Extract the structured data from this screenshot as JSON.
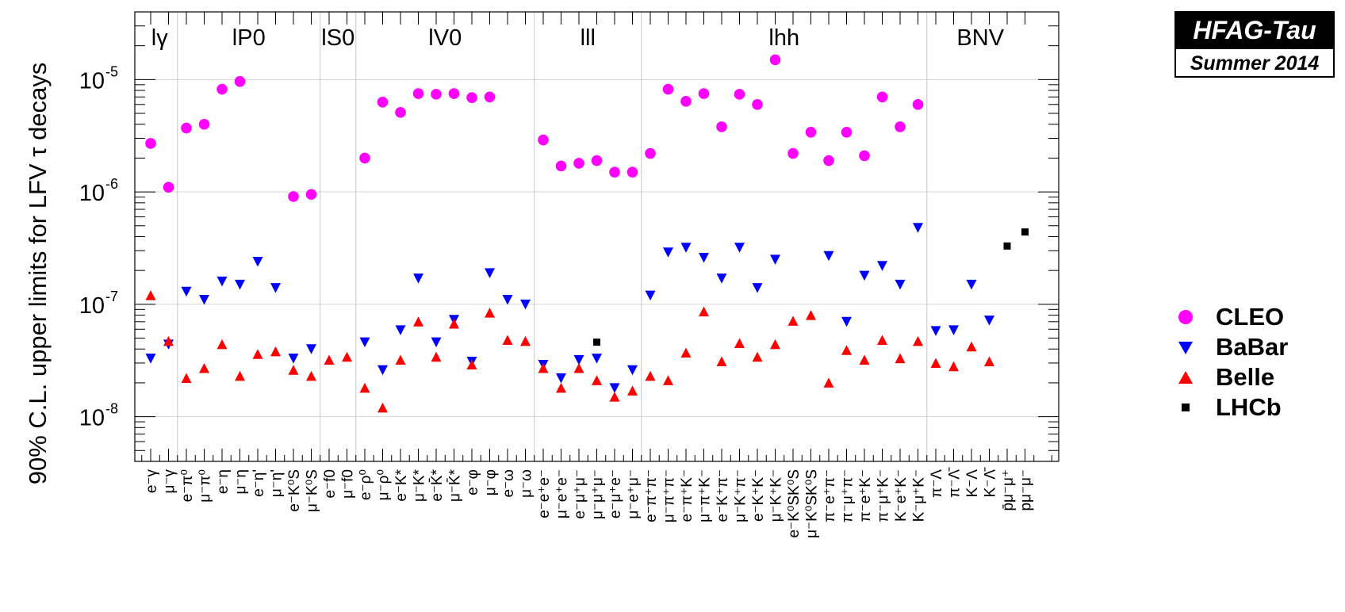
{
  "chart_data": {
    "type": "scatter",
    "ylabel": "90% C.L. upper limits for LFV τ decays",
    "yscale": "log",
    "ylim": [
      4e-09,
      4e-05
    ],
    "ytick_labels": [
      {
        "base": "10",
        "exp": "-8",
        "value": 1e-08
      },
      {
        "base": "10",
        "exp": "-7",
        "value": 1e-07
      },
      {
        "base": "10",
        "exp": "-6",
        "value": 1e-06
      },
      {
        "base": "10",
        "exp": "-5",
        "value": 1e-05
      }
    ],
    "grid": true,
    "legend_position": "right",
    "groups": [
      {
        "label": "lγ",
        "start": 0,
        "end": 2
      },
      {
        "label": "lP0",
        "start": 2,
        "end": 10
      },
      {
        "label": "lS0",
        "start": 10,
        "end": 12
      },
      {
        "label": "lV0",
        "start": 12,
        "end": 22
      },
      {
        "label": "lll",
        "start": 22,
        "end": 28
      },
      {
        "label": "lhh",
        "start": 28,
        "end": 44
      },
      {
        "label": "BNV",
        "start": 44,
        "end": 50
      }
    ],
    "categories": [
      "e⁻γ",
      "μ⁻γ",
      "e⁻π⁰",
      "μ⁻π⁰",
      "e⁻η",
      "μ⁻η",
      "e⁻η'",
      "μ⁻η'",
      "e⁻K⁰S",
      "μ⁻K⁰S",
      "e⁻f0",
      "μ⁻f0",
      "e⁻ρ⁰",
      "μ⁻ρ⁰",
      "e⁻K*",
      "μ⁻K*",
      "e⁻K̄*",
      "μ⁻K̄*",
      "e⁻φ",
      "μ⁻φ",
      "e⁻ω",
      "μ⁻ω",
      "e⁻e⁺e⁻",
      "μ⁻e⁺e⁻",
      "e⁻μ⁺μ⁻",
      "μ⁻μ⁺μ⁻",
      "e⁻μ⁺e⁻",
      "μ⁻e⁺μ⁻",
      "e⁻π⁺π⁻",
      "μ⁻π⁺π⁻",
      "e⁻π⁺K⁻",
      "μ⁻π⁺K⁻",
      "e⁻K⁺π⁻",
      "μ⁻K⁺π⁻",
      "e⁻K⁺K⁻",
      "μ⁻K⁺K⁻",
      "e⁻K⁰SK⁰S",
      "μ⁻K⁰SK⁰S",
      "π⁻e⁺π⁻",
      "π⁻μ⁺π⁻",
      "π⁻e⁺K⁻",
      "π⁻μ⁺K⁻",
      "K⁻e⁺K⁻",
      "K⁻μ⁺K⁻",
      "π⁻Λ",
      "π⁻Λ̄",
      "K⁻Λ",
      "K⁻Λ̄",
      "p̄μ⁻μ⁺",
      "pμ⁻μ⁻"
    ],
    "series": [
      {
        "name": "CLEO",
        "color": "#ff00ff",
        "marker": "circle",
        "values": [
          2.7e-06,
          1.1e-06,
          3.7e-06,
          4e-06,
          8.2e-06,
          9.6e-06,
          null,
          null,
          9.1e-07,
          9.5e-07,
          null,
          null,
          2e-06,
          6.3e-06,
          5.1e-06,
          7.5e-06,
          7.4e-06,
          7.5e-06,
          6.9e-06,
          7e-06,
          null,
          null,
          2.9e-06,
          1.7e-06,
          1.8e-06,
          1.9e-06,
          1.5e-06,
          1.5e-06,
          2.2e-06,
          8.2e-06,
          6.4e-06,
          7.5e-06,
          3.8e-06,
          7.4e-06,
          6e-06,
          1.5e-05,
          2.2e-06,
          3.4e-06,
          1.9e-06,
          3.4e-06,
          2.1e-06,
          7e-06,
          3.8e-06,
          6e-06,
          null,
          null,
          null,
          null,
          null,
          null
        ]
      },
      {
        "name": "BaBar",
        "color": "#0000ff",
        "marker": "triangle-down",
        "values": [
          3.3e-08,
          4.4e-08,
          1.3e-07,
          1.1e-07,
          1.6e-07,
          1.5e-07,
          2.4e-07,
          1.4e-07,
          3.3e-08,
          4e-08,
          null,
          null,
          4.6e-08,
          2.6e-08,
          5.9e-08,
          1.7e-07,
          4.6e-08,
          7.3e-08,
          3.1e-08,
          1.9e-07,
          1.1e-07,
          1e-07,
          2.9e-08,
          2.2e-08,
          3.2e-08,
          3.3e-08,
          1.8e-08,
          2.6e-08,
          1.2e-07,
          2.9e-07,
          3.2e-07,
          2.6e-07,
          1.7e-07,
          3.2e-07,
          1.4e-07,
          2.5e-07,
          null,
          null,
          2.7e-07,
          7e-08,
          1.8e-07,
          2.2e-07,
          1.5e-07,
          4.8e-07,
          5.8e-08,
          5.9e-08,
          1.5e-07,
          7.2e-08,
          null,
          null
        ]
      },
      {
        "name": "Belle",
        "color": "#ff0000",
        "marker": "triangle-up",
        "values": [
          1.2e-07,
          4.7e-08,
          2.2e-08,
          2.7e-08,
          4.4e-08,
          2.3e-08,
          3.6e-08,
          3.8e-08,
          2.6e-08,
          2.3e-08,
          3.2e-08,
          3.4e-08,
          1.8e-08,
          1.2e-08,
          3.2e-08,
          7e-08,
          3.4e-08,
          6.7e-08,
          2.9e-08,
          8.4e-08,
          4.8e-08,
          4.7e-08,
          2.7e-08,
          1.8e-08,
          2.7e-08,
          2.1e-08,
          1.5e-08,
          1.7e-08,
          2.3e-08,
          2.1e-08,
          3.7e-08,
          8.6e-08,
          3.1e-08,
          4.5e-08,
          3.4e-08,
          4.4e-08,
          7.1e-08,
          8e-08,
          2e-08,
          3.9e-08,
          3.2e-08,
          4.8e-08,
          3.3e-08,
          4.7e-08,
          3e-08,
          2.8e-08,
          4.2e-08,
          3.1e-08,
          null,
          null
        ]
      },
      {
        "name": "LHCb",
        "color": "#000000",
        "marker": "square",
        "values": [
          null,
          null,
          null,
          null,
          null,
          null,
          null,
          null,
          null,
          null,
          null,
          null,
          null,
          null,
          null,
          null,
          null,
          null,
          null,
          null,
          null,
          null,
          null,
          null,
          null,
          4.6e-08,
          null,
          null,
          null,
          null,
          null,
          null,
          null,
          null,
          null,
          null,
          null,
          null,
          null,
          null,
          null,
          null,
          null,
          null,
          null,
          null,
          null,
          null,
          3.3e-07,
          4.4e-07
        ]
      }
    ]
  },
  "badge": {
    "title": "HFAG-Tau",
    "subtitle": "Summer 2014"
  }
}
